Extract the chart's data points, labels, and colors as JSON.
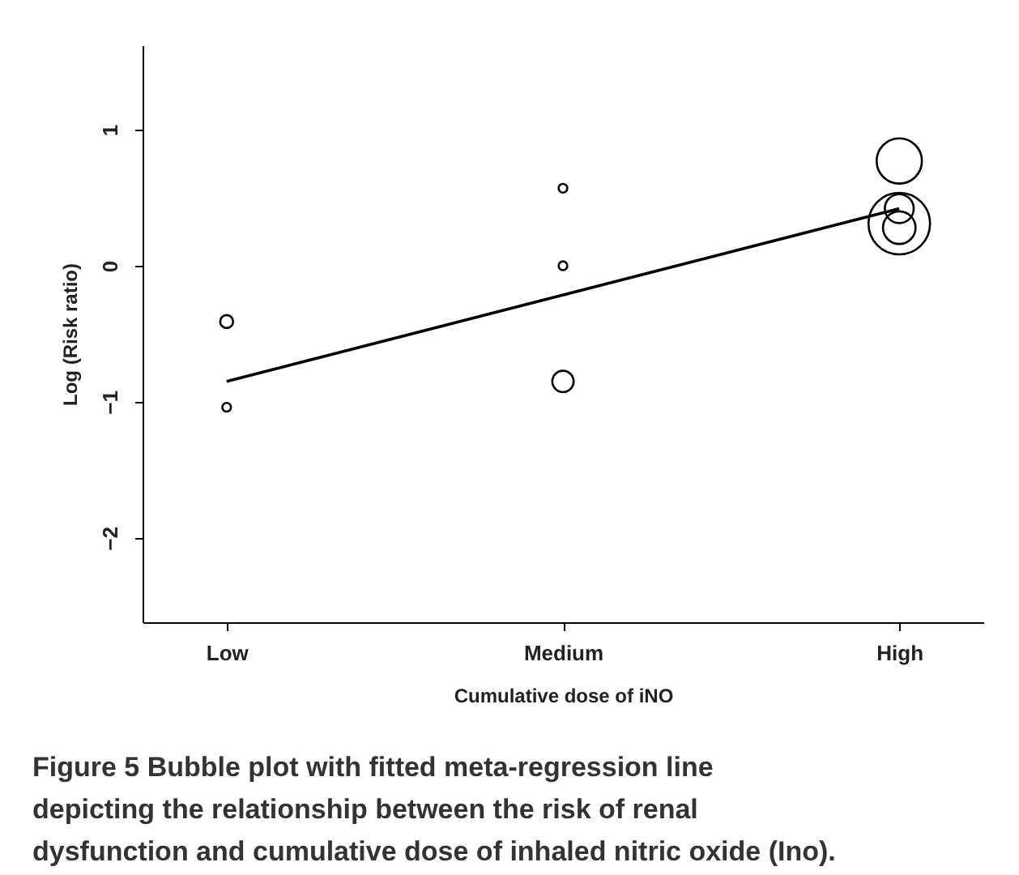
{
  "chart_data": {
    "type": "bubble",
    "xlabel": "Cumulative dose of iNO",
    "ylabel": "Log (Risk ratio)",
    "categories": [
      "Low",
      "Medium",
      "High"
    ],
    "ylim": [
      -2.62,
      1.62
    ],
    "yticks": [
      -2,
      -1,
      0,
      1
    ],
    "grid": false,
    "legend": false,
    "series": [
      {
        "marker": "circle",
        "color": "#000000",
        "x": [
          "Low",
          "Low",
          "Medium",
          "Medium",
          "Medium",
          "High",
          "High",
          "High",
          "High"
        ],
        "values": [
          -0.41,
          -1.04,
          0.57,
          0.0,
          -0.85,
          0.77,
          0.42,
          0.28,
          0.31
        ],
        "sizes": [
          0.044,
          0.02,
          0.02,
          0.02,
          0.12,
          0.54,
          0.22,
          0.28,
          1
        ]
      },
      {
        "type": "line",
        "marker": "none",
        "color": "#000000",
        "line_style": "solid",
        "x": [
          "Low",
          "High"
        ],
        "values": [
          -0.85,
          0.42
        ]
      }
    ],
    "annotations": [
      "Figure 5 Bubble plot with fitted meta-regression line depicting the relationship between the risk of renal dysfunction and cumulative dose of inhaled nitric oxide (Ino)."
    ]
  }
}
